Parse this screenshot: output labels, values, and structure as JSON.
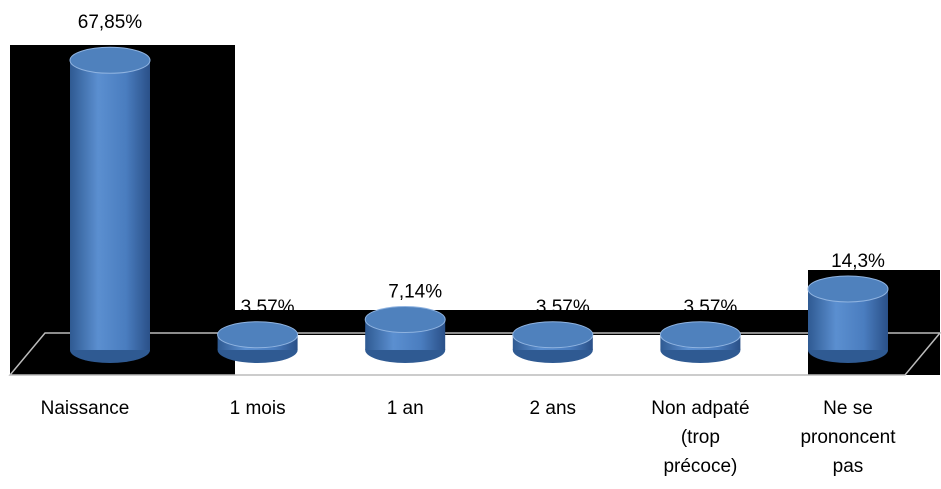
{
  "chart_data": {
    "type": "cylinder-bar",
    "categories": [
      [
        "Naissance"
      ],
      [
        "1 mois"
      ],
      [
        "1 an"
      ],
      [
        "2 ans"
      ],
      [
        "Non adpaté",
        "(trop",
        "précoce)"
      ],
      [
        "Ne se",
        "prononcent",
        "pas"
      ]
    ],
    "values": [
      67.85,
      3.57,
      7.14,
      3.57,
      3.57,
      14.3
    ],
    "value_labels": [
      "67,85%",
      "3,57%",
      "7,14%",
      "3,57%",
      "3,57%",
      "14,3%"
    ],
    "color": "#4f81bd"
  }
}
